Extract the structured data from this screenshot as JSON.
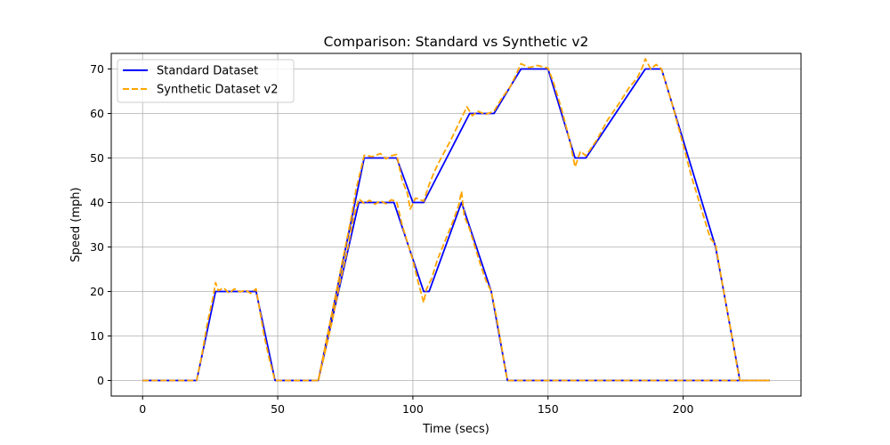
{
  "chart_data": {
    "type": "line",
    "title": "Comparison: Standard vs Synthetic v2",
    "xlabel": "Time (secs)",
    "ylabel": "Speed (mph)",
    "xlim": [
      -11.6,
      243.6
    ],
    "ylim": [
      -3.5,
      73.5
    ],
    "xticks": [
      0,
      50,
      100,
      150,
      200
    ],
    "yticks": [
      0,
      10,
      20,
      30,
      40,
      50,
      60,
      70
    ],
    "grid": true,
    "legend_position": "top-left",
    "series": [
      {
        "name": "Standard Dataset",
        "color": "#0000ff",
        "style": "solid",
        "segments": [
          [
            [
              0,
              0
            ],
            [
              20,
              0
            ],
            [
              27,
              20
            ],
            [
              42,
              20
            ],
            [
              49,
              0
            ],
            [
              65,
              0
            ],
            [
              82,
              50
            ],
            [
              94,
              50
            ],
            [
              100,
              40
            ],
            [
              104,
              40
            ],
            [
              121,
              60
            ],
            [
              130,
              60
            ],
            [
              140,
              70
            ],
            [
              150,
              70
            ],
            [
              160,
              50
            ],
            [
              164,
              50
            ],
            [
              186,
              70
            ],
            [
              192,
              70
            ],
            [
              212,
              30
            ],
            [
              221,
              0
            ],
            [
              232,
              0
            ]
          ],
          [
            [
              65,
              0
            ],
            [
              80,
              40
            ],
            [
              93,
              40
            ],
            [
              104,
              20
            ],
            [
              106,
              20
            ],
            [
              118,
              40
            ],
            [
              129,
              20
            ],
            [
              135,
              0
            ],
            [
              232,
              0
            ]
          ]
        ]
      },
      {
        "name": "Synthetic Dataset v2",
        "color": "#ffa500",
        "style": "dashed",
        "segments": [
          [
            [
              0,
              0
            ],
            [
              20,
              0
            ],
            [
              22,
              6
            ],
            [
              24,
              13
            ],
            [
              26,
              18.5
            ],
            [
              27,
              22
            ],
            [
              28,
              20.2
            ],
            [
              30,
              20.8
            ],
            [
              32,
              19.6
            ],
            [
              34,
              20.6
            ],
            [
              36,
              19.9
            ],
            [
              38,
              20.3
            ],
            [
              40,
              19.6
            ],
            [
              42,
              20.6
            ],
            [
              43,
              17
            ],
            [
              45,
              10
            ],
            [
              47,
              4.5
            ],
            [
              49,
              0
            ],
            [
              65,
              0
            ],
            [
              68,
              9
            ],
            [
              71,
              18
            ],
            [
              74,
              27
            ],
            [
              77,
              36
            ],
            [
              79,
              43
            ],
            [
              81,
              48
            ],
            [
              82,
              50.6
            ],
            [
              85,
              50.3
            ],
            [
              88,
              51
            ],
            [
              90,
              49.8
            ],
            [
              92,
              50.5
            ],
            [
              94,
              50.8
            ],
            [
              96,
              45
            ],
            [
              98,
              42
            ],
            [
              99,
              38.5
            ],
            [
              101,
              41
            ],
            [
              104,
              40.3
            ],
            [
              106,
              44
            ],
            [
              108,
              47
            ],
            [
              110,
              49.5
            ],
            [
              114,
              54
            ],
            [
              118,
              59
            ],
            [
              120,
              61.5
            ],
            [
              122,
              59.5
            ],
            [
              124,
              60.5
            ],
            [
              127,
              59.8
            ],
            [
              130,
              60.5
            ],
            [
              133,
              63.5
            ],
            [
              136,
              66
            ],
            [
              138,
              68.5
            ],
            [
              140,
              71.2
            ],
            [
              143,
              70.3
            ],
            [
              146,
              70.8
            ],
            [
              150,
              70.2
            ],
            [
              152,
              67
            ],
            [
              155,
              61
            ],
            [
              158,
              54
            ],
            [
              160,
              48
            ],
            [
              162,
              51.5
            ],
            [
              164,
              50.5
            ],
            [
              168,
              54
            ],
            [
              172,
              58.5
            ],
            [
              176,
              62
            ],
            [
              180,
              65.8
            ],
            [
              183,
              68
            ],
            [
              185,
              70.5
            ],
            [
              186,
              72.3
            ],
            [
              188,
              70
            ],
            [
              190,
              71
            ],
            [
              192,
              70
            ],
            [
              196,
              62
            ],
            [
              200,
              53
            ],
            [
              203,
              46
            ],
            [
              207,
              38
            ],
            [
              210,
              32
            ],
            [
              212,
              30.5
            ],
            [
              215,
              20
            ],
            [
              218,
              10
            ],
            [
              220,
              3
            ],
            [
              221,
              0
            ],
            [
              232,
              0
            ]
          ],
          [
            [
              65,
              0
            ],
            [
              67,
              5
            ],
            [
              70,
              13
            ],
            [
              73,
              22
            ],
            [
              76,
              30
            ],
            [
              78,
              36.5
            ],
            [
              80,
              40.8
            ],
            [
              82,
              39.8
            ],
            [
              84,
              40.5
            ],
            [
              86,
              39.6
            ],
            [
              88,
              40.4
            ],
            [
              90,
              39.7
            ],
            [
              92,
              40.6
            ],
            [
              94,
              40.2
            ],
            [
              96,
              35
            ],
            [
              98,
              31
            ],
            [
              100,
              27
            ],
            [
              102,
              22
            ],
            [
              104,
              17.5
            ],
            [
              105,
              20.5
            ],
            [
              107,
              23
            ],
            [
              109,
              27
            ],
            [
              111,
              30
            ],
            [
              113,
              33
            ],
            [
              115,
              36
            ],
            [
              117,
              39.5
            ],
            [
              118,
              42.5
            ],
            [
              119,
              37
            ],
            [
              121,
              34
            ],
            [
              123,
              30
            ],
            [
              125,
              26
            ],
            [
              127,
              22.5
            ],
            [
              129,
              20
            ],
            [
              131,
              14
            ],
            [
              133,
              7
            ],
            [
              134,
              3
            ],
            [
              135,
              0
            ],
            [
              232,
              0
            ]
          ]
        ]
      }
    ]
  }
}
